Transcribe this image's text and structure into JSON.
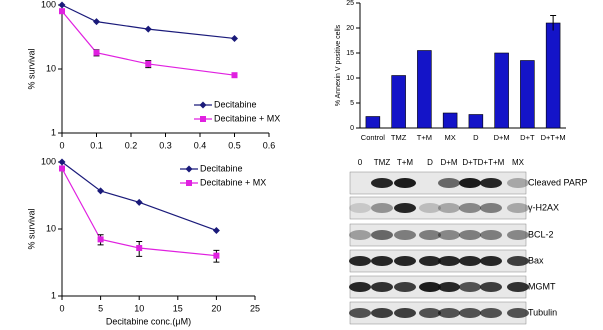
{
  "chart_data": [
    {
      "type": "line",
      "log_y": true,
      "ylabel": "% survival",
      "x": [
        0,
        0.1,
        0.25,
        0.5
      ],
      "xlim": [
        0,
        0.6
      ],
      "xticks": [
        0,
        0.1,
        0.2,
        0.3,
        0.4,
        0.5,
        0.6
      ],
      "ylim": [
        1,
        100
      ],
      "yticks": [
        1,
        10,
        100
      ],
      "legend": "lower right",
      "series": [
        {
          "name": "Decitabine",
          "color": "#1a1a7a",
          "marker": "diamond",
          "values": [
            100,
            55,
            42,
            30
          ]
        },
        {
          "name": "Decitabine + MX",
          "color": "#e020e0",
          "marker": "square",
          "values": [
            80,
            18,
            12,
            8
          ],
          "errors": [
            null,
            2,
            1.5,
            0.6
          ]
        }
      ]
    },
    {
      "type": "line",
      "log_y": true,
      "ylabel": "% survival",
      "xlabel": "Decitabine conc.(μM)",
      "x": [
        0,
        5,
        10,
        20
      ],
      "xlim": [
        0,
        25
      ],
      "xticks": [
        0,
        5,
        10,
        15,
        20,
        25
      ],
      "ylim": [
        1,
        100
      ],
      "yticks": [
        1,
        10,
        100
      ],
      "legend": "upper right",
      "series": [
        {
          "name": "Decitabine",
          "color": "#1a1a7a",
          "marker": "diamond",
          "values": [
            100,
            37,
            25,
            9.5
          ]
        },
        {
          "name": "Decitabine + MX",
          "color": "#e020e0",
          "marker": "square",
          "values": [
            80,
            7,
            5.2,
            4
          ],
          "errors": [
            null,
            1.2,
            1.3,
            0.8
          ]
        }
      ]
    },
    {
      "type": "bar",
      "ylabel": "% Annexin V positive cells",
      "categories": [
        "Control",
        "TMZ",
        "T+M",
        "MX",
        "D",
        "D+M",
        "D+T",
        "D+T+M"
      ],
      "values": [
        2.3,
        10.5,
        15.5,
        3,
        2.7,
        15,
        13.5,
        21
      ],
      "errors": [
        null,
        null,
        null,
        null,
        null,
        null,
        null,
        1.5
      ],
      "color": "#1414c8",
      "ylim": [
        0,
        25
      ],
      "yticks": [
        0,
        5,
        10,
        15,
        20,
        25
      ]
    }
  ],
  "blot": {
    "lanes": [
      "0",
      "TMZ",
      "T+M",
      "D",
      "D+M",
      "D+T",
      "D+T+M",
      "MX"
    ],
    "rows": [
      "Cleaved PARP",
      "γ-H2AX",
      "BCL-2",
      "Bax",
      "MGMT",
      "Tubulin"
    ]
  }
}
